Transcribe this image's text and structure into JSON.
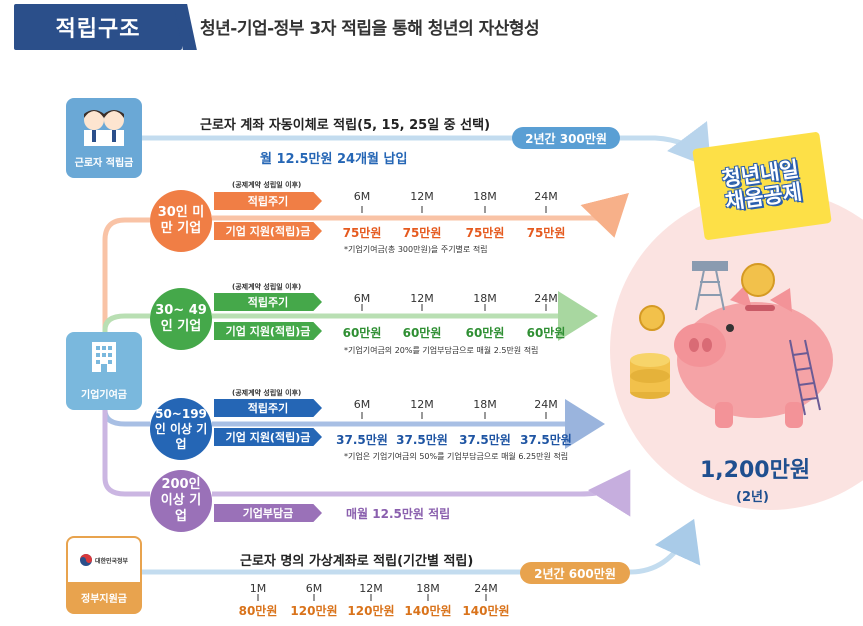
{
  "header": {
    "title": "적립구조",
    "subtitle": "청년-기업-정부 3자 적립을 통해 청년의 자산형성"
  },
  "worker": {
    "label": "근로자 적립금",
    "line": "근로자 계좌 자동이체로 적립(5, 15, 25일 중 선택)",
    "sub": "월 12.5만원 24개월 납입",
    "pill": "2년간 300만원"
  },
  "company": {
    "label": "기업기여금"
  },
  "gov": {
    "label": "정부지원금",
    "emblem": "대한민국정부",
    "line": "근로자 명의 가상계좌로 적립(기간별 적립)",
    "pill": "2년간 600만원",
    "ticks": [
      "1M",
      "6M",
      "12M",
      "18M",
      "24M"
    ],
    "values": [
      "80만원",
      "120만원",
      "120만원",
      "140만원",
      "140만원"
    ]
  },
  "common": {
    "note": "(공제계약 성립일 이후)",
    "cycle": "적립주기",
    "support": "기업 지원(적립)금",
    "ticks": [
      "6M",
      "12M",
      "18M",
      "24M"
    ]
  },
  "tiers": [
    {
      "name": "30인 미만 기업",
      "values": [
        "75만원",
        "75만원",
        "75만원",
        "75만원"
      ],
      "footnote": "*기업기여금(총 300만원)을 주기별로 적립"
    },
    {
      "name": "30~ 49인 기업",
      "values": [
        "60만원",
        "60만원",
        "60만원",
        "60만원"
      ],
      "footnote": "*기업기여금의 20%를 기업부담금으로 매월 2.5만원 적립"
    },
    {
      "name": "50~199인 이상 기업",
      "values": [
        "37.5만원",
        "37.5만원",
        "37.5만원",
        "37.5만원"
      ],
      "footnote": "*기업은 기업기여금의 50%를 기업부담금으로 매월 6.25만원 적립"
    },
    {
      "name": "200인 이상 기업",
      "tag": "기업부담금",
      "monthly": "매월 12.5만원 적립"
    }
  ],
  "result": {
    "bubble_line1": "청년내일",
    "bubble_line2": "채움공제",
    "total": "1,200만원",
    "period": "(2년)"
  },
  "colors": {
    "navy": "#2b4f8a",
    "orange": "#f07e45",
    "green": "#45a84a",
    "blue": "#2566b5",
    "purple": "#9a71b8",
    "sky": "#6aa8d6",
    "gold": "#e8a34e",
    "pink": "#fbd9d6"
  },
  "icons": [
    "workers-icon",
    "building-icon",
    "government-emblem-icon",
    "piggy-bank-icon",
    "coin-stack-icon"
  ]
}
